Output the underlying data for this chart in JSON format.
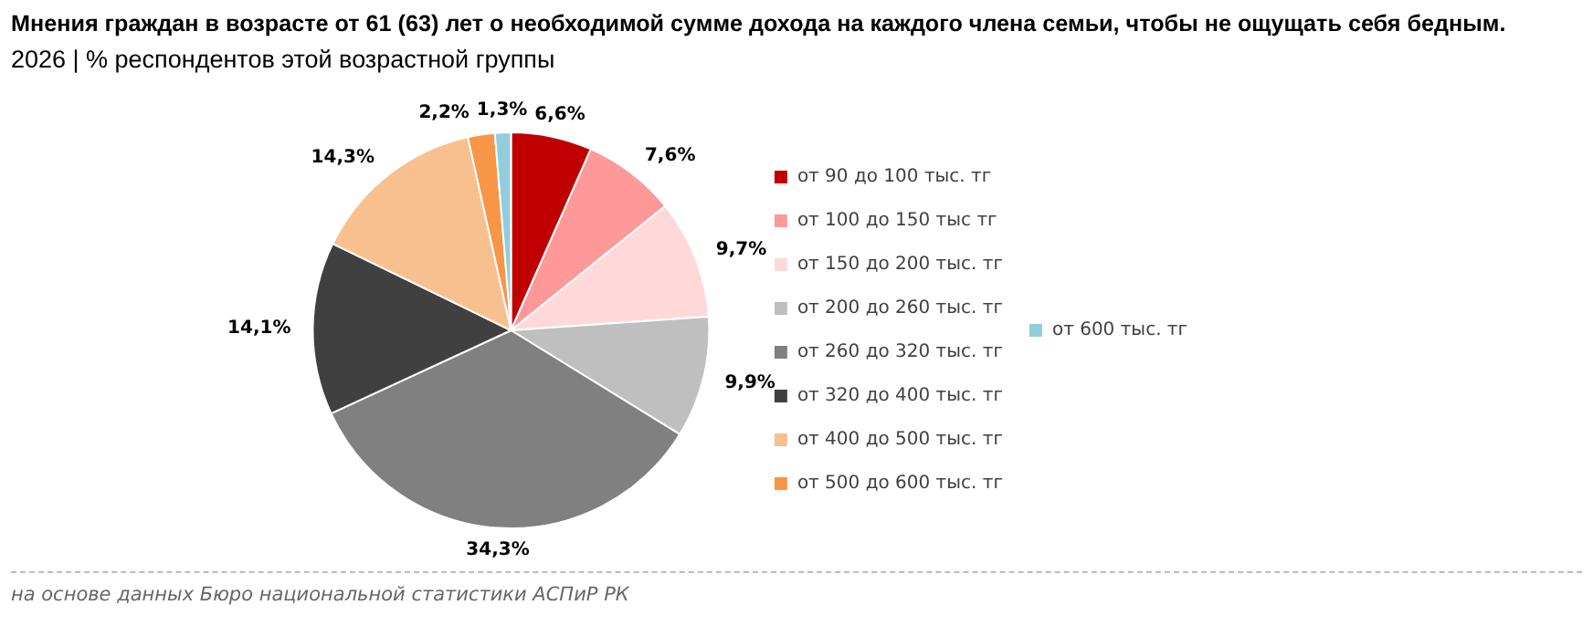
{
  "chart_data": {
    "type": "pie",
    "title": "Мнения граждан в возрасте от 61 (63) лет о необходимой сумме дохода на каждого члена семьи, чтобы не ощущать себя бедным.",
    "subtitle": "2026 | % респондентов этой возрастной группы",
    "categories": [
      "от 90 до 100 тыс. тг",
      "от 100 до 150 тыс тг",
      "от 150 до 200 тыс. тг",
      "от 200 до 260 тыс. тг",
      "от 260 до 320 тыс. тг",
      "от 320 до 400 тыс. тг",
      "от 400 до 500 тыс. тг",
      "от 500 до 600 тыс. тг",
      "от 600 тыс. тг"
    ],
    "values": [
      6.6,
      7.6,
      9.7,
      9.9,
      34.3,
      14.1,
      14.3,
      2.2,
      1.3
    ],
    "colors": [
      "#c00000",
      "#ff9999",
      "#ffd9d9",
      "#bfbfbf",
      "#808080",
      "#404040",
      "#f9c08f",
      "#f79646",
      "#92cddc"
    ],
    "value_labels": [
      "6,6%",
      "7,6%",
      "9,7%",
      "9,9%",
      "34,3%",
      "14,1%",
      "14,3%",
      "2,2%",
      "1,3%"
    ],
    "legend": "right",
    "annotations": [
      "на основе данных Бюро национальной статистики АСПиР РК"
    ]
  }
}
